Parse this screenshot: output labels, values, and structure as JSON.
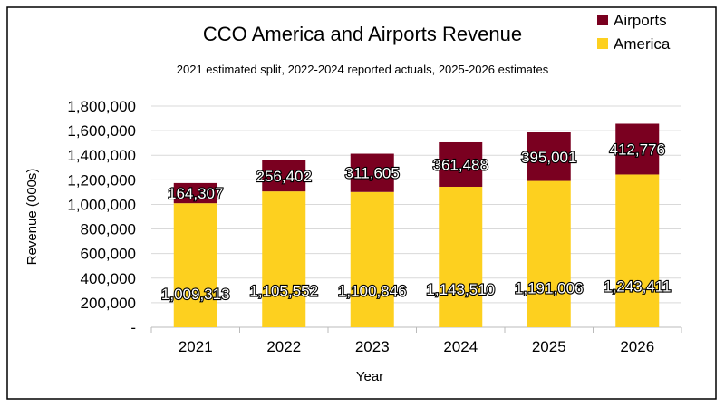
{
  "chart_data": {
    "type": "bar",
    "stacked": true,
    "title": "CCO America and Airports Revenue",
    "subtitle": "2021 estimated split, 2022-2024 reported actuals, 2025-2026 estimates",
    "xlabel": "Year",
    "ylabel": "Revenue (000s)",
    "ylim": [
      0,
      1800000
    ],
    "yticks": [
      0,
      200000,
      400000,
      600000,
      800000,
      1000000,
      1200000,
      1400000,
      1600000,
      1800000
    ],
    "ytick_labels": [
      "-",
      "200,000",
      "400,000",
      "600,000",
      "800,000",
      "1,000,000",
      "1,200,000",
      "1,400,000",
      "1,600,000",
      "1,800,000"
    ],
    "grid": true,
    "legend_position": "top-right",
    "categories": [
      "2021",
      "2022",
      "2023",
      "2024",
      "2025",
      "2026"
    ],
    "series": [
      {
        "name": "America",
        "color": "#FDD01F",
        "values": [
          1009313,
          1105552,
          1100846,
          1143510,
          1191006,
          1243411
        ],
        "labels": [
          "1,009,313",
          "1,105,552",
          "1,100,846",
          "1,143,510",
          "1,191,006",
          "1,243,411"
        ]
      },
      {
        "name": "Airports",
        "color": "#7A0020",
        "values": [
          164307,
          256402,
          311605,
          361488,
          395001,
          412776
        ],
        "labels": [
          "164,307",
          "256,402",
          "311,605",
          "361,488",
          "395,001",
          "412,776"
        ]
      }
    ]
  }
}
